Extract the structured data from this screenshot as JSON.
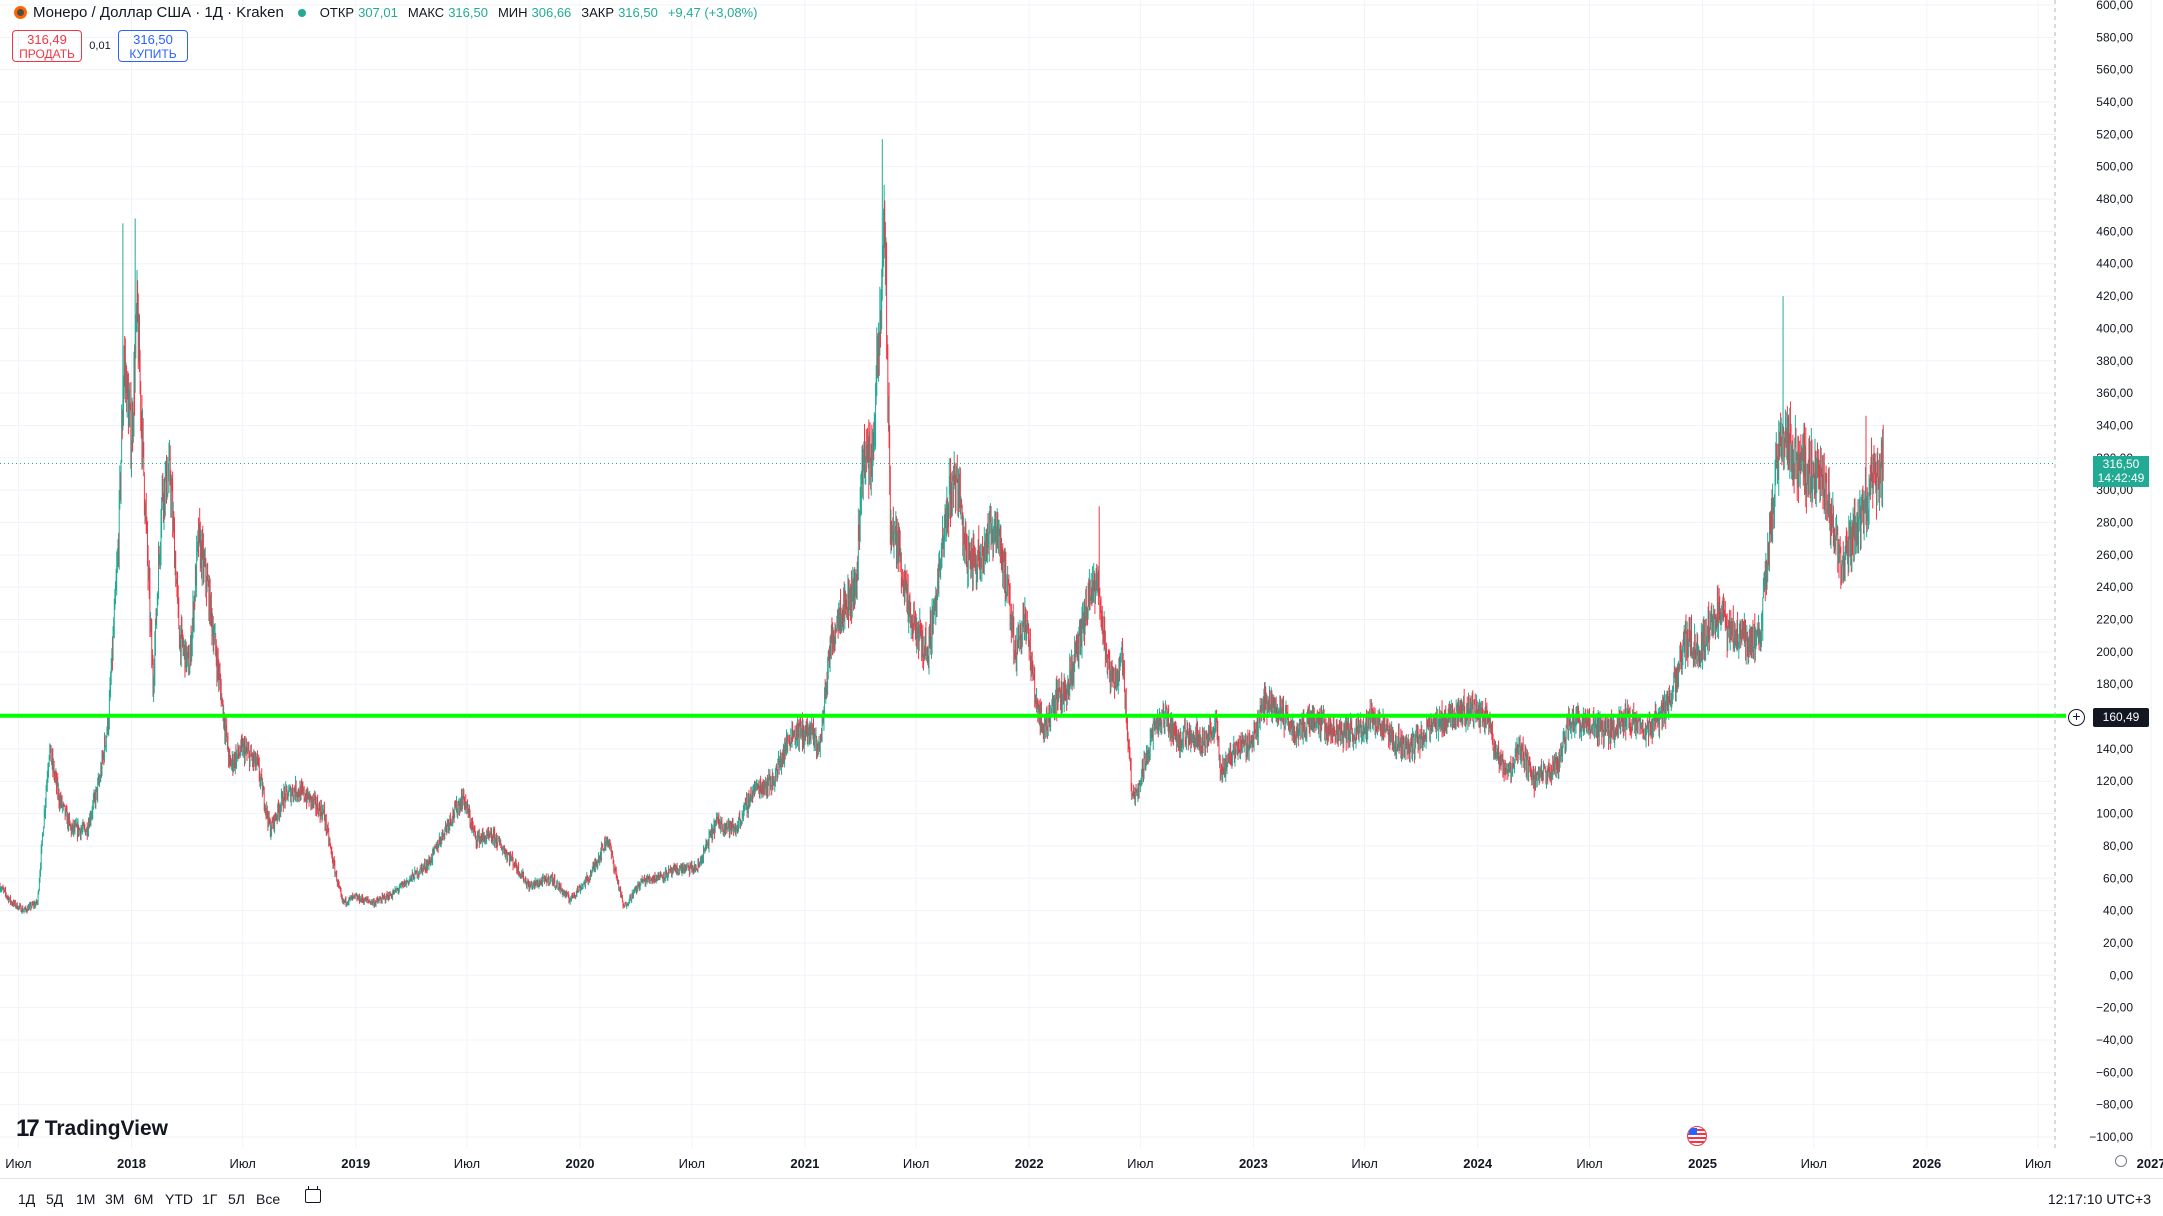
{
  "header": {
    "title": "Монеро / Доллар США · 1Д · Kraken",
    "open_label": "ОТКР",
    "open_value": "307,01",
    "high_label": "МАКС",
    "high_value": "316,50",
    "low_label": "МИН",
    "low_value": "306,66",
    "close_label": "ЗАКР",
    "close_value": "316,50",
    "change": "+9,47 (+3,08%)"
  },
  "trade": {
    "sell_price": "316,49",
    "sell_label": "ПРОДАТЬ",
    "spread": "0,01",
    "buy_price": "316,50",
    "buy_label": "КУПИТЬ"
  },
  "logo": {
    "text": "TradingView"
  },
  "price_badge": {
    "price": "316,50",
    "countdown": "14:42:49"
  },
  "hline_badge": {
    "price": "160,49"
  },
  "timeframes": [
    "1Д",
    "5Д",
    "1М",
    "3М",
    "6М",
    "YTD",
    "1Г",
    "5Л",
    "Все"
  ],
  "clock": "12:17:10 UTC+3",
  "colors": {
    "up": "#22ab94",
    "down": "#f23645",
    "hline": "#00ff00",
    "grid": "#f0f3fa"
  },
  "chart_data": {
    "type": "candlestick",
    "symbol": "XMRUSD",
    "interval": "1D",
    "ylim": [
      -100,
      600
    ],
    "y_ticks": [
      "600,00",
      "580,00",
      "560,00",
      "540,00",
      "520,00",
      "500,00",
      "480,00",
      "460,00",
      "440,00",
      "420,00",
      "400,00",
      "380,00",
      "360,00",
      "340,00",
      "320,00",
      "300,00",
      "280,00",
      "260,00",
      "240,00",
      "220,00",
      "200,00",
      "180,00",
      "160,00",
      "140,00",
      "120,00",
      "100,00",
      "80,00",
      "60,00",
      "40,00",
      "20,00",
      "0,00",
      "−20,00",
      "−40,00",
      "−60,00",
      "−80,00",
      "−100,00"
    ],
    "y_tick_values": [
      600,
      580,
      560,
      540,
      520,
      500,
      480,
      460,
      440,
      420,
      400,
      380,
      360,
      340,
      320,
      300,
      280,
      260,
      240,
      220,
      200,
      180,
      160,
      140,
      120,
      100,
      80,
      60,
      40,
      20,
      0,
      -20,
      -40,
      -60,
      -80,
      -100
    ],
    "x_range": [
      "2017-06-01",
      "2027-04-15"
    ],
    "x_ticks": [
      {
        "date": "2017-07-01",
        "label": "Июл",
        "bold": false
      },
      {
        "date": "2018-01-01",
        "label": "2018",
        "bold": true
      },
      {
        "date": "2018-07-01",
        "label": "Июл",
        "bold": false
      },
      {
        "date": "2019-01-01",
        "label": "2019",
        "bold": true
      },
      {
        "date": "2019-07-01",
        "label": "Июл",
        "bold": false
      },
      {
        "date": "2020-01-01",
        "label": "2020",
        "bold": true
      },
      {
        "date": "2020-07-01",
        "label": "Июл",
        "bold": false
      },
      {
        "date": "2021-01-01",
        "label": "2021",
        "bold": true
      },
      {
        "date": "2021-07-01",
        "label": "Июл",
        "bold": false
      },
      {
        "date": "2022-01-01",
        "label": "2022",
        "bold": true
      },
      {
        "date": "2022-07-01",
        "label": "Июл",
        "bold": false
      },
      {
        "date": "2023-01-01",
        "label": "2023",
        "bold": true
      },
      {
        "date": "2023-07-01",
        "label": "Июл",
        "bold": false
      },
      {
        "date": "2024-01-01",
        "label": "2024",
        "bold": true
      },
      {
        "date": "2024-07-01",
        "label": "Июл",
        "bold": false
      },
      {
        "date": "2025-01-01",
        "label": "2025",
        "bold": true
      },
      {
        "date": "2025-07-01",
        "label": "Июл",
        "bold": false
      },
      {
        "date": "2026-01-01",
        "label": "2026",
        "bold": true
      },
      {
        "date": "2026-07-01",
        "label": "Июл",
        "bold": false
      },
      {
        "date": "2027-01-01",
        "label": "2027",
        "bold": true
      }
    ],
    "price_path": [
      [
        "2017-06-01",
        55
      ],
      [
        "2017-06-20",
        45
      ],
      [
        "2017-07-10",
        40
      ],
      [
        "2017-08-01",
        45
      ],
      [
        "2017-08-20",
        140
      ],
      [
        "2017-09-05",
        110
      ],
      [
        "2017-09-25",
        90
      ],
      [
        "2017-10-20",
        90
      ],
      [
        "2017-11-10",
        120
      ],
      [
        "2017-11-25",
        160
      ],
      [
        "2017-12-10",
        260
      ],
      [
        "2017-12-20",
        380
      ],
      [
        "2018-01-01",
        330
      ],
      [
        "2018-01-10",
        410
      ],
      [
        "2018-01-20",
        320
      ],
      [
        "2018-02-05",
        180
      ],
      [
        "2018-02-20",
        300
      ],
      [
        "2018-03-05",
        310
      ],
      [
        "2018-03-20",
        210
      ],
      [
        "2018-04-05",
        190
      ],
      [
        "2018-04-20",
        270
      ],
      [
        "2018-05-05",
        240
      ],
      [
        "2018-05-25",
        180
      ],
      [
        "2018-06-10",
        130
      ],
      [
        "2018-07-01",
        140
      ],
      [
        "2018-07-25",
        130
      ],
      [
        "2018-08-15",
        90
      ],
      [
        "2018-09-05",
        110
      ],
      [
        "2018-09-25",
        115
      ],
      [
        "2018-10-15",
        110
      ],
      [
        "2018-11-10",
        100
      ],
      [
        "2018-11-25",
        70
      ],
      [
        "2018-12-10",
        45
      ],
      [
        "2018-12-30",
        48
      ],
      [
        "2019-02-01",
        45
      ],
      [
        "2019-03-01",
        50
      ],
      [
        "2019-04-01",
        60
      ],
      [
        "2019-05-01",
        70
      ],
      [
        "2019-06-01",
        95
      ],
      [
        "2019-06-25",
        110
      ],
      [
        "2019-07-15",
        85
      ],
      [
        "2019-08-15",
        85
      ],
      [
        "2019-09-15",
        70
      ],
      [
        "2019-10-10",
        55
      ],
      [
        "2019-11-15",
        60
      ],
      [
        "2019-12-15",
        47
      ],
      [
        "2020-01-15",
        60
      ],
      [
        "2020-02-15",
        85
      ],
      [
        "2020-03-12",
        42
      ],
      [
        "2020-04-10",
        58
      ],
      [
        "2020-05-15",
        62
      ],
      [
        "2020-06-15",
        66
      ],
      [
        "2020-07-10",
        66
      ],
      [
        "2020-08-10",
        95
      ],
      [
        "2020-09-10",
        90
      ],
      [
        "2020-10-10",
        115
      ],
      [
        "2020-11-10",
        120
      ],
      [
        "2020-12-10",
        150
      ],
      [
        "2021-01-10",
        150
      ],
      [
        "2021-01-25",
        140
      ],
      [
        "2021-02-10",
        200
      ],
      [
        "2021-02-25",
        225
      ],
      [
        "2021-03-10",
        230
      ],
      [
        "2021-03-25",
        240
      ],
      [
        "2021-04-05",
        320
      ],
      [
        "2021-04-20",
        320
      ],
      [
        "2021-05-05",
        410
      ],
      [
        "2021-05-10",
        480
      ],
      [
        "2021-05-20",
        280
      ],
      [
        "2021-06-05",
        260
      ],
      [
        "2021-06-20",
        220
      ],
      [
        "2021-07-05",
        210
      ],
      [
        "2021-07-20",
        200
      ],
      [
        "2021-08-10",
        255
      ],
      [
        "2021-08-25",
        300
      ],
      [
        "2021-09-06",
        310
      ],
      [
        "2021-09-20",
        260
      ],
      [
        "2021-10-05",
        255
      ],
      [
        "2021-10-25",
        270
      ],
      [
        "2021-11-10",
        280
      ],
      [
        "2021-11-25",
        240
      ],
      [
        "2021-12-10",
        200
      ],
      [
        "2021-12-25",
        225
      ],
      [
        "2022-01-10",
        175
      ],
      [
        "2022-01-25",
        150
      ],
      [
        "2022-02-10",
        170
      ],
      [
        "2022-03-01",
        175
      ],
      [
        "2022-03-20",
        200
      ],
      [
        "2022-04-10",
        235
      ],
      [
        "2022-04-25",
        240
      ],
      [
        "2022-05-08",
        190
      ],
      [
        "2022-05-20",
        180
      ],
      [
        "2022-06-01",
        200
      ],
      [
        "2022-06-18",
        110
      ],
      [
        "2022-07-01",
        120
      ],
      [
        "2022-07-20",
        150
      ],
      [
        "2022-08-10",
        160
      ],
      [
        "2022-09-01",
        145
      ],
      [
        "2022-09-20",
        150
      ],
      [
        "2022-10-15",
        145
      ],
      [
        "2022-11-01",
        155
      ],
      [
        "2022-11-09",
        125
      ],
      [
        "2022-12-01",
        140
      ],
      [
        "2022-12-30",
        145
      ],
      [
        "2023-01-20",
        170
      ],
      [
        "2023-02-10",
        165
      ],
      [
        "2023-03-10",
        150
      ],
      [
        "2023-04-10",
        160
      ],
      [
        "2023-05-10",
        150
      ],
      [
        "2023-06-15",
        150
      ],
      [
        "2023-07-15",
        160
      ],
      [
        "2023-08-15",
        145
      ],
      [
        "2023-09-10",
        140
      ],
      [
        "2023-10-10",
        150
      ],
      [
        "2023-11-10",
        160
      ],
      [
        "2023-12-10",
        165
      ],
      [
        "2024-01-15",
        160
      ],
      [
        "2024-02-07",
        130
      ],
      [
        "2024-02-20",
        125
      ],
      [
        "2024-03-10",
        140
      ],
      [
        "2024-04-01",
        120
      ],
      [
        "2024-04-20",
        125
      ],
      [
        "2024-05-10",
        130
      ],
      [
        "2024-06-01",
        160
      ],
      [
        "2024-07-01",
        155
      ],
      [
        "2024-08-01",
        150
      ],
      [
        "2024-09-01",
        160
      ],
      [
        "2024-10-01",
        150
      ],
      [
        "2024-11-01",
        165
      ],
      [
        "2024-11-20",
        185
      ],
      [
        "2024-12-05",
        210
      ],
      [
        "2024-12-25",
        200
      ],
      [
        "2025-01-10",
        215
      ],
      [
        "2025-01-25",
        225
      ],
      [
        "2025-02-10",
        215
      ],
      [
        "2025-03-01",
        210
      ],
      [
        "2025-03-20",
        205
      ],
      [
        "2025-04-05",
        210
      ],
      [
        "2025-04-20",
        270
      ],
      [
        "2025-05-01",
        310
      ],
      [
        "2025-05-10",
        335
      ],
      [
        "2025-05-20",
        330
      ],
      [
        "2025-06-01",
        320
      ],
      [
        "2025-06-15",
        315
      ],
      [
        "2025-07-01",
        310
      ],
      [
        "2025-07-15",
        305
      ],
      [
        "2025-08-01",
        280
      ],
      [
        "2025-08-15",
        255
      ],
      [
        "2025-09-01",
        270
      ],
      [
        "2025-09-15",
        280
      ],
      [
        "2025-09-25",
        295
      ],
      [
        "2025-10-05",
        310
      ],
      [
        "2025-10-15",
        305
      ],
      [
        "2025-10-22",
        316.5
      ]
    ],
    "spikes": [
      {
        "date": "2017-12-18",
        "high": 465
      },
      {
        "date": "2018-01-07",
        "high": 468
      },
      {
        "date": "2021-05-07",
        "high": 517
      },
      {
        "date": "2022-04-25",
        "high": 290
      },
      {
        "date": "2025-05-12",
        "high": 420
      },
      {
        "date": "2025-09-24",
        "high": 346
      }
    ],
    "horizontal_line": 160.49,
    "last_price": 316.5
  }
}
